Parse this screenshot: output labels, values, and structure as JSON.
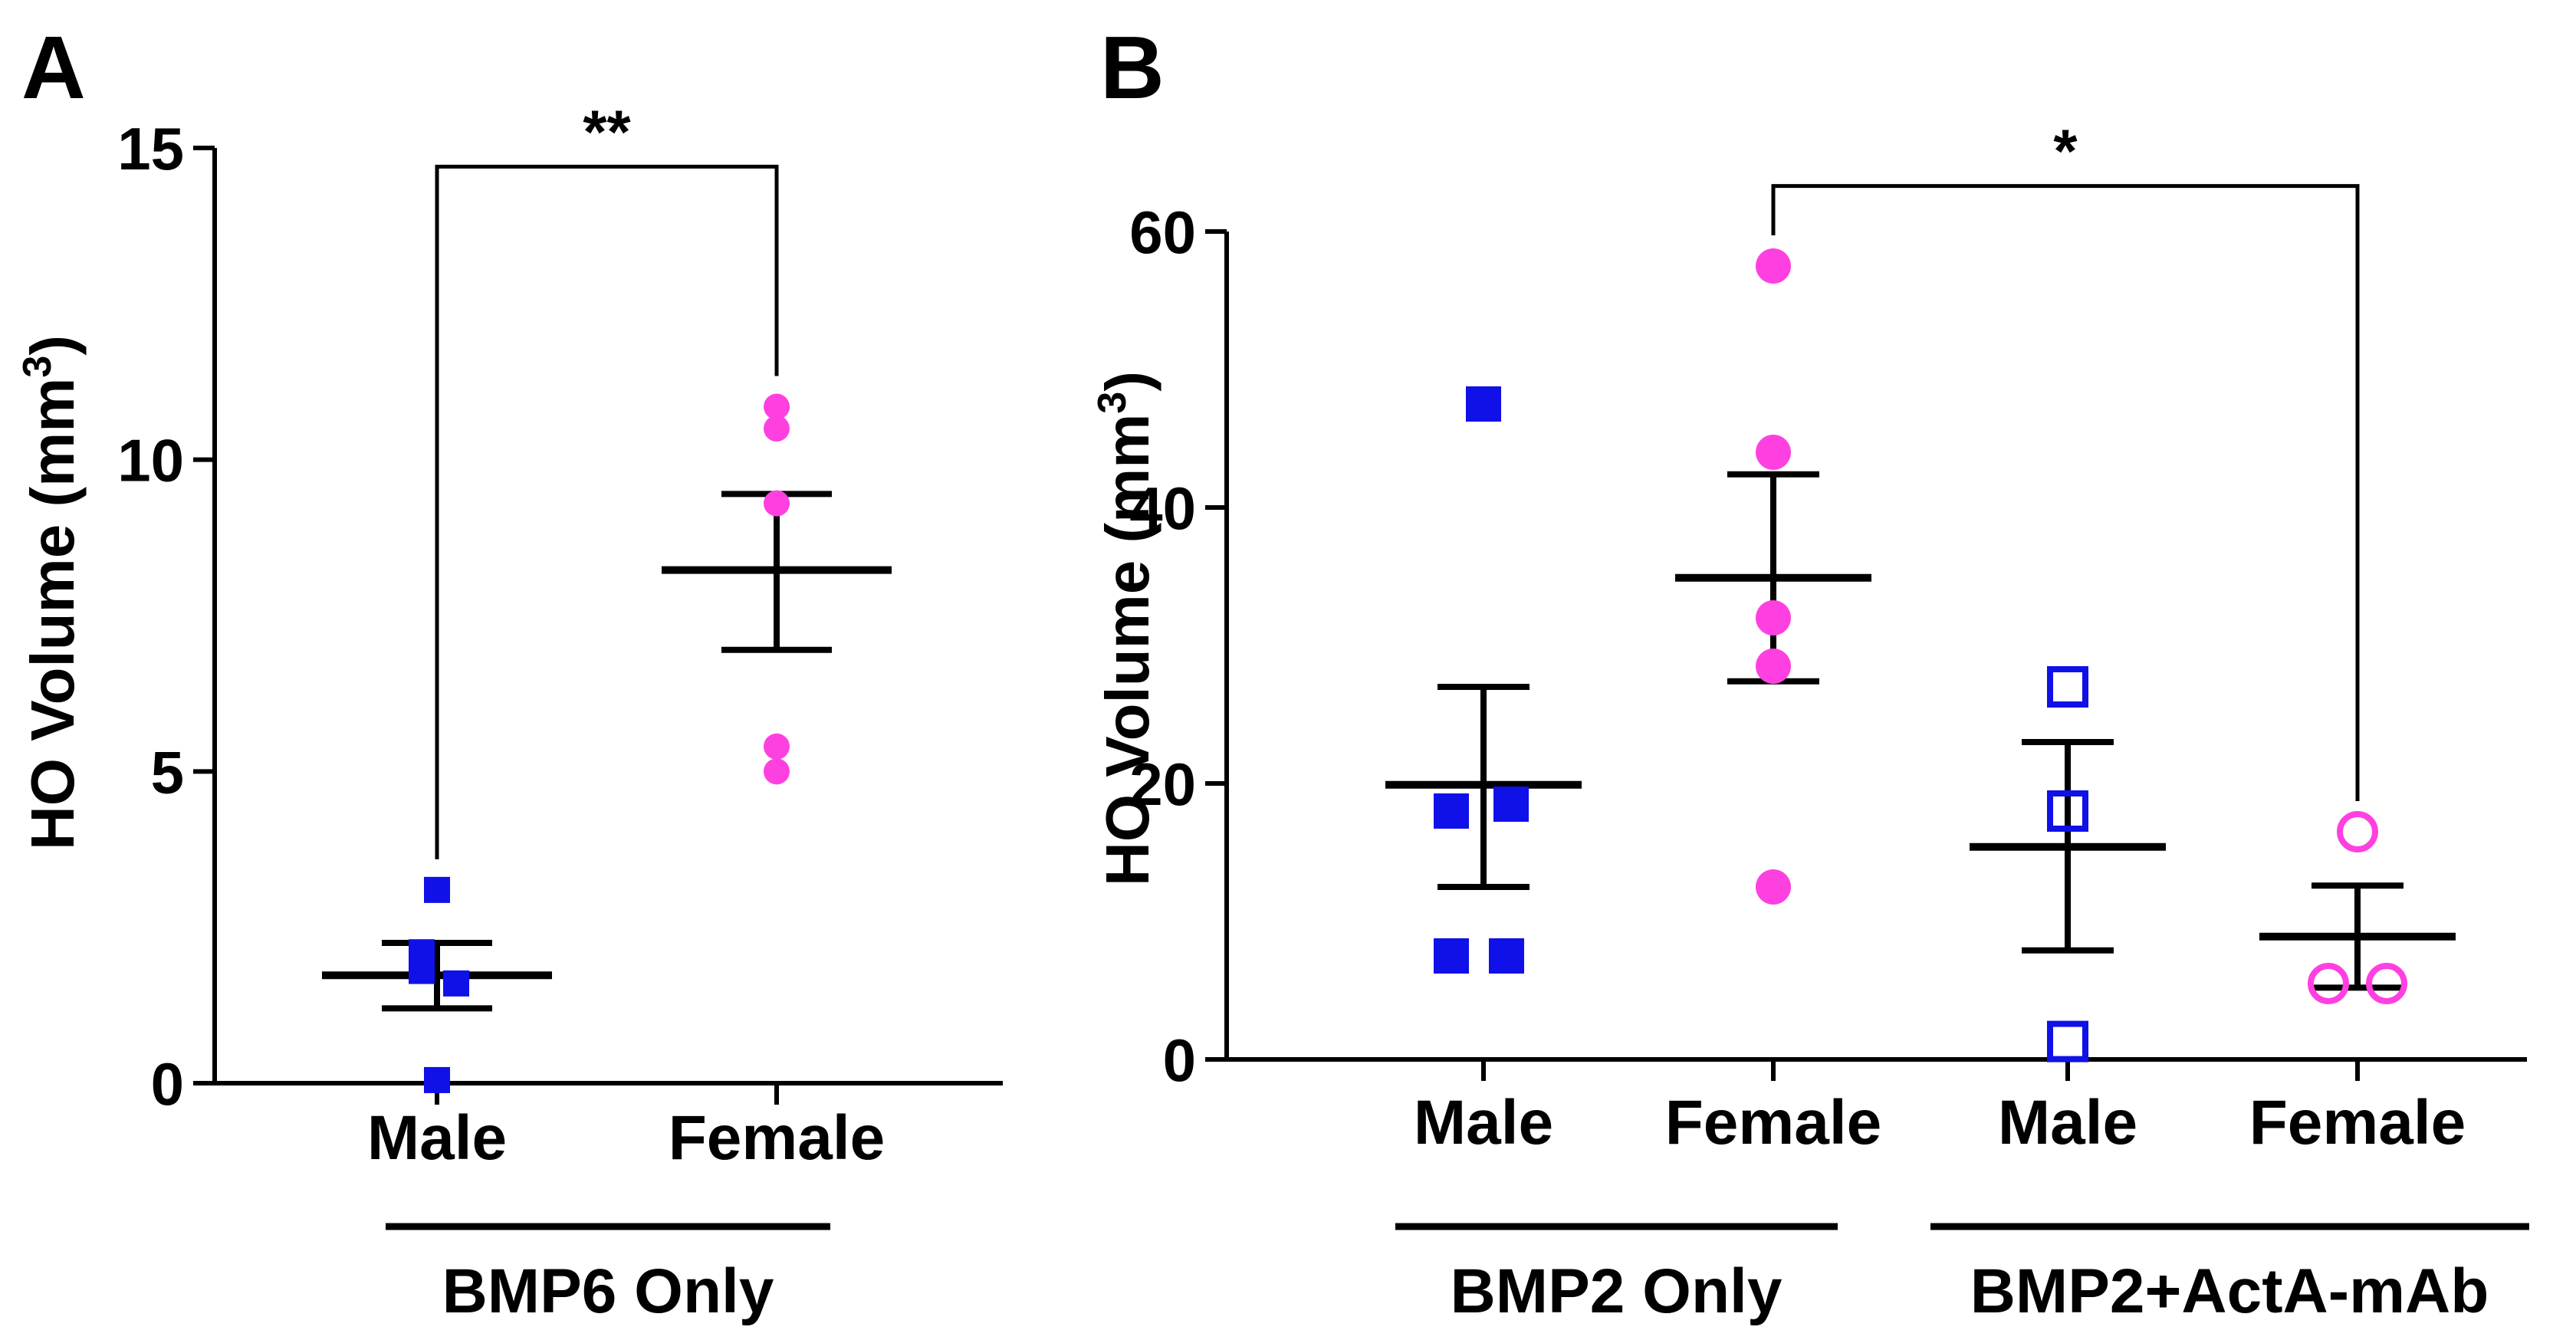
{
  "chart_data": [
    {
      "panel": "A",
      "type": "scatter",
      "ylabel": "HO Volume (mm³)",
      "ylabel_main": "HO Volume (mm",
      "ylabel_sup": "3",
      "ylabel_end": ")",
      "ylim": [
        0,
        15
      ],
      "yticks": [
        0,
        5,
        10,
        15
      ],
      "ytick_labels": [
        "0",
        "5",
        "10",
        "15"
      ],
      "categories": [
        "Male",
        "Female"
      ],
      "group_label": "BMP6 Only",
      "groups": [
        {
          "category": "Male",
          "color": "#1010e8",
          "marker": "square-filled",
          "points": [
            3.1,
            2.1,
            1.8,
            1.6,
            0.05
          ],
          "mean": 1.73,
          "sem_low": 1.2,
          "sem_high": 2.25
        },
        {
          "category": "Female",
          "color": "#ff40e0",
          "marker": "circle-filled",
          "points": [
            10.85,
            10.5,
            9.3,
            5.4,
            5.0
          ],
          "mean": 8.23,
          "sem_low": 6.95,
          "sem_high": 9.45
        }
      ],
      "significance": {
        "from": "Male",
        "to": "Female",
        "label": "**",
        "y": 14.7
      }
    },
    {
      "panel": "B",
      "type": "scatter",
      "ylabel": "HO Volume (mm³)",
      "ylabel_main": "HO Volume (mm",
      "ylabel_sup": "3",
      "ylabel_end": ")",
      "ylim": [
        0,
        60
      ],
      "yticks": [
        0,
        20,
        40,
        60
      ],
      "ytick_labels": [
        "0",
        "20",
        "40",
        "60"
      ],
      "categories": [
        "Male",
        "Female",
        "Male",
        "Female"
      ],
      "group_labels": [
        "BMP2 Only",
        "BMP2+ActA-mAb"
      ],
      "groups": [
        {
          "category": "Male",
          "color": "#1010e8",
          "marker": "square-filled",
          "points": [
            47.5,
            18.0,
            18.5,
            7.5,
            7.5
          ],
          "mean": 19.9,
          "sem_low": 12.5,
          "sem_high": 27.0
        },
        {
          "category": "Female",
          "color": "#ff40e0",
          "marker": "circle-filled",
          "points": [
            57.5,
            44.0,
            32.0,
            28.5,
            12.5
          ],
          "mean": 34.9,
          "sem_low": 27.4,
          "sem_high": 42.4
        },
        {
          "category": "Male",
          "color": "#1010e8",
          "marker": "square-open",
          "points": [
            27.0,
            18.0,
            1.3
          ],
          "mean": 15.4,
          "sem_low": 7.9,
          "sem_high": 23.0
        },
        {
          "category": "Female",
          "color": "#ff40e0",
          "marker": "circle-open",
          "points": [
            16.5,
            5.5,
            5.5
          ],
          "mean": 8.9,
          "sem_low": 5.2,
          "sem_high": 12.6
        }
      ],
      "significance": {
        "from": 1,
        "to": 3,
        "label": "*",
        "y": 63.3
      }
    }
  ],
  "panel_labels": [
    "A",
    "B"
  ]
}
